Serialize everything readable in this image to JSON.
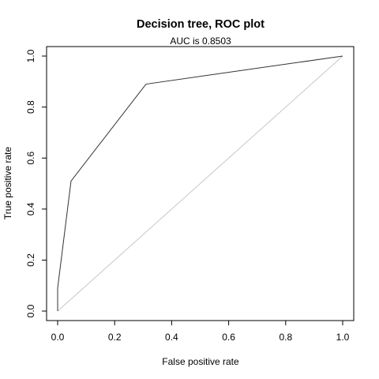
{
  "chart_data": {
    "type": "line",
    "title": "Decision tree, ROC plot",
    "subtitle": "AUC is 0.8503",
    "xlabel": "False positive rate",
    "ylabel": "True positive rate",
    "xlim": [
      0,
      1
    ],
    "ylim": [
      0,
      1
    ],
    "x_ticks": [
      "0.0",
      "0.2",
      "0.4",
      "0.6",
      "0.8",
      "1.0"
    ],
    "y_ticks": [
      "0.0",
      "0.2",
      "0.4",
      "0.6",
      "0.8",
      "1.0"
    ],
    "grid": false,
    "legend": "none",
    "series": [
      {
        "x": [
          0.0,
          0.0,
          0.047,
          0.31,
          1.0
        ],
        "y": [
          0.0,
          0.09,
          0.51,
          0.89,
          1.0
        ],
        "color": "#333333"
      },
      {
        "x": [
          0.0,
          1.0
        ],
        "y": [
          0.0,
          1.0
        ],
        "color": "#c8c8c8"
      }
    ]
  }
}
